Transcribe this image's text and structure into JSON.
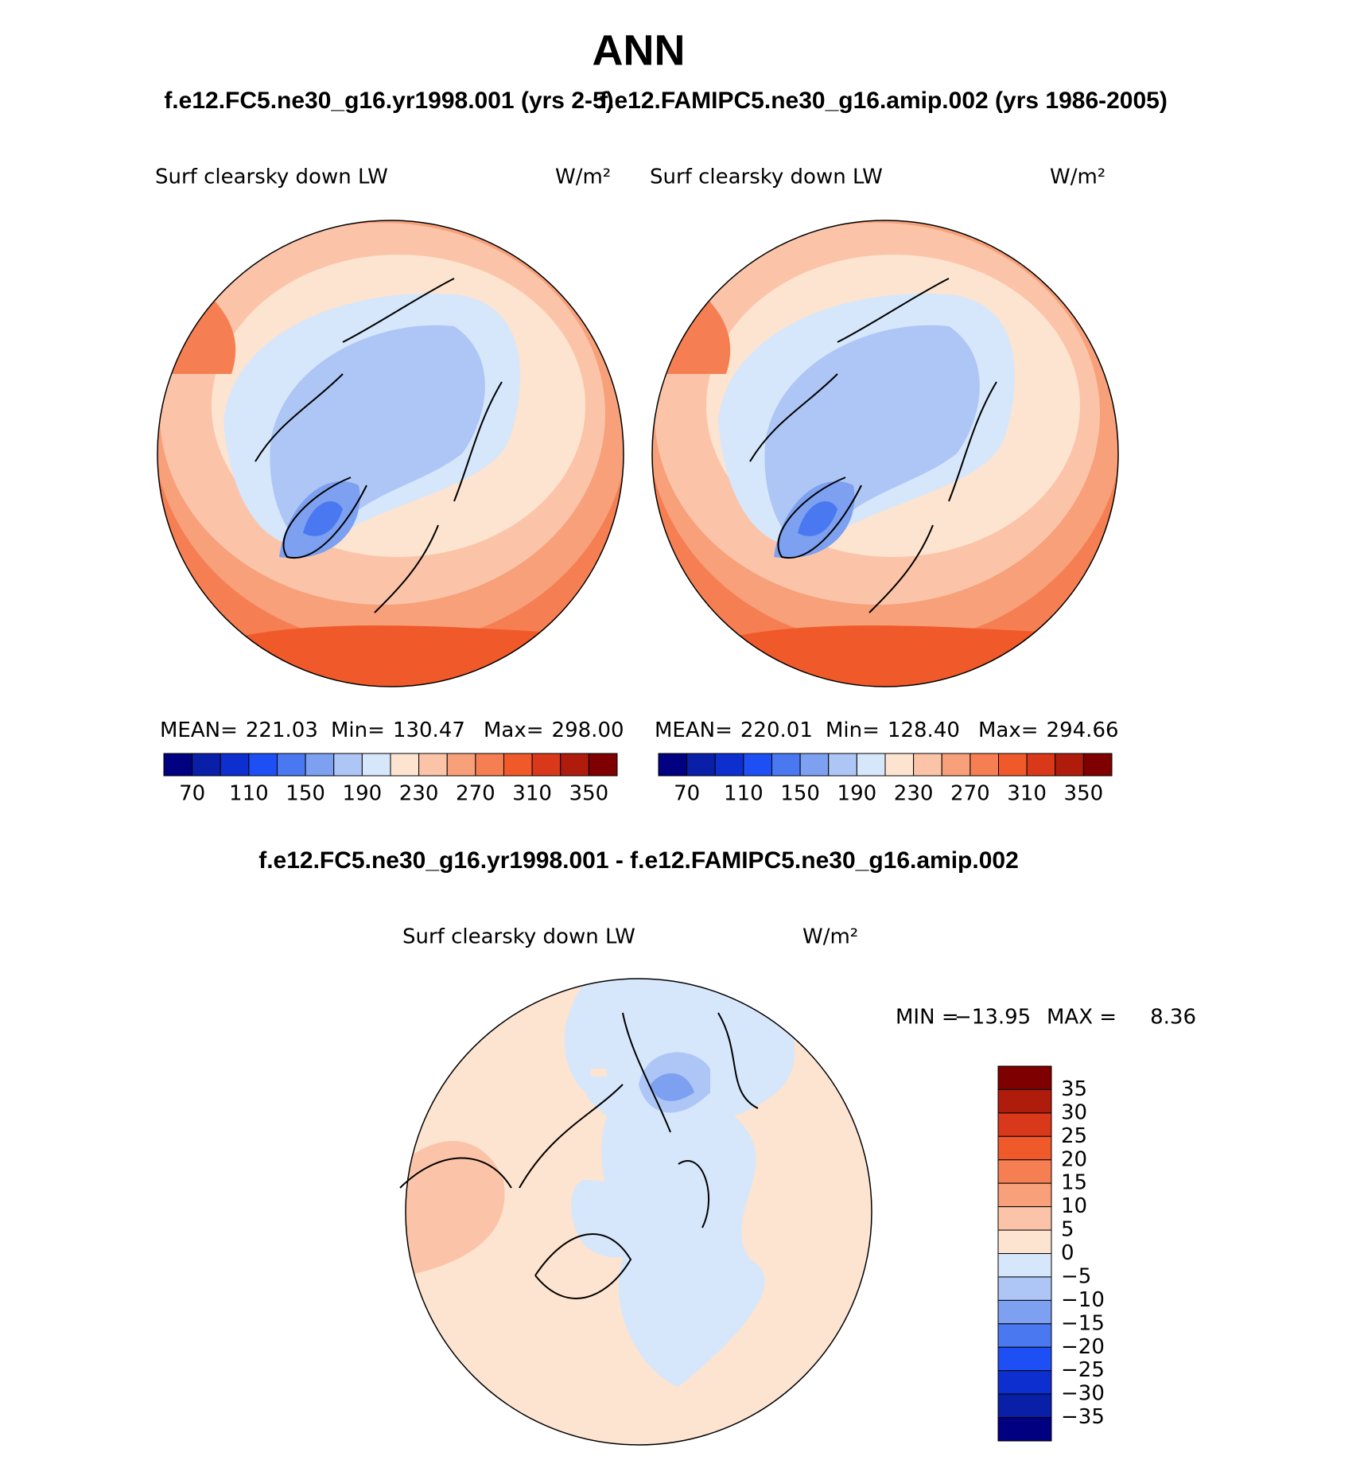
{
  "title": "ANN",
  "panels": [
    {
      "case": "f.e12.FC5.ne30_g16.yr1998.001 (yrs 2-5)",
      "variable": "Surf clearsky down LW",
      "units": "W/m²",
      "stats": [
        {
          "label": "MEAN=",
          "value": "221.03"
        },
        {
          "label": "Min=",
          "value": "130.47"
        },
        {
          "label": "Max=",
          "value": "298.00"
        }
      ]
    },
    {
      "case": "f.e12.FAMIPC5.ne30_g16.amip.002 (yrs 1986-2005)",
      "variable": "Surf clearsky down LW",
      "units": "W/m²",
      "stats": [
        {
          "label": "MEAN=",
          "value": "220.01"
        },
        {
          "label": "Min=",
          "value": "128.40"
        },
        {
          "label": "Max=",
          "value": "294.66"
        }
      ]
    }
  ],
  "colorbar": {
    "labels": [
      70,
      110,
      150,
      190,
      230,
      270,
      310,
      350
    ],
    "colors": [
      "#000080",
      "#0a1fa8",
      "#0d2fd0",
      "#1e4ff5",
      "#4a78f0",
      "#7da0f0",
      "#aec6f5",
      "#d6e6fb",
      "#fde4d0",
      "#fbc4a8",
      "#f7a07a",
      "#f57f52",
      "#f05a2b",
      "#d9381a",
      "#b01c0c",
      "#7f0000"
    ]
  },
  "difference": {
    "title": "f.e12.FC5.ne30_g16.yr1998.001 - f.e12.FAMIPC5.ne30_g16.amip.002",
    "variable": "Surf clearsky down LW",
    "units": "W/m²",
    "min_label": "MIN =",
    "min": "−13.95",
    "max_label": "MAX =",
    "max": "8.36",
    "colorbar": {
      "labels": [
        "35",
        "30",
        "25",
        "20",
        "15",
        "10",
        "5",
        "0",
        "−5",
        "−10",
        "−15",
        "−20",
        "−25",
        "−30",
        "−35"
      ],
      "colors": [
        "#7f0000",
        "#b01c0c",
        "#d9381a",
        "#f05a2b",
        "#f57f52",
        "#f7a07a",
        "#fbc4a8",
        "#fde4d0",
        "#d6e6fb",
        "#aec6f5",
        "#7da0f0",
        "#4a78f0",
        "#1e4ff5",
        "#0d2fd0",
        "#0a1fa8",
        "#000080"
      ]
    }
  }
}
